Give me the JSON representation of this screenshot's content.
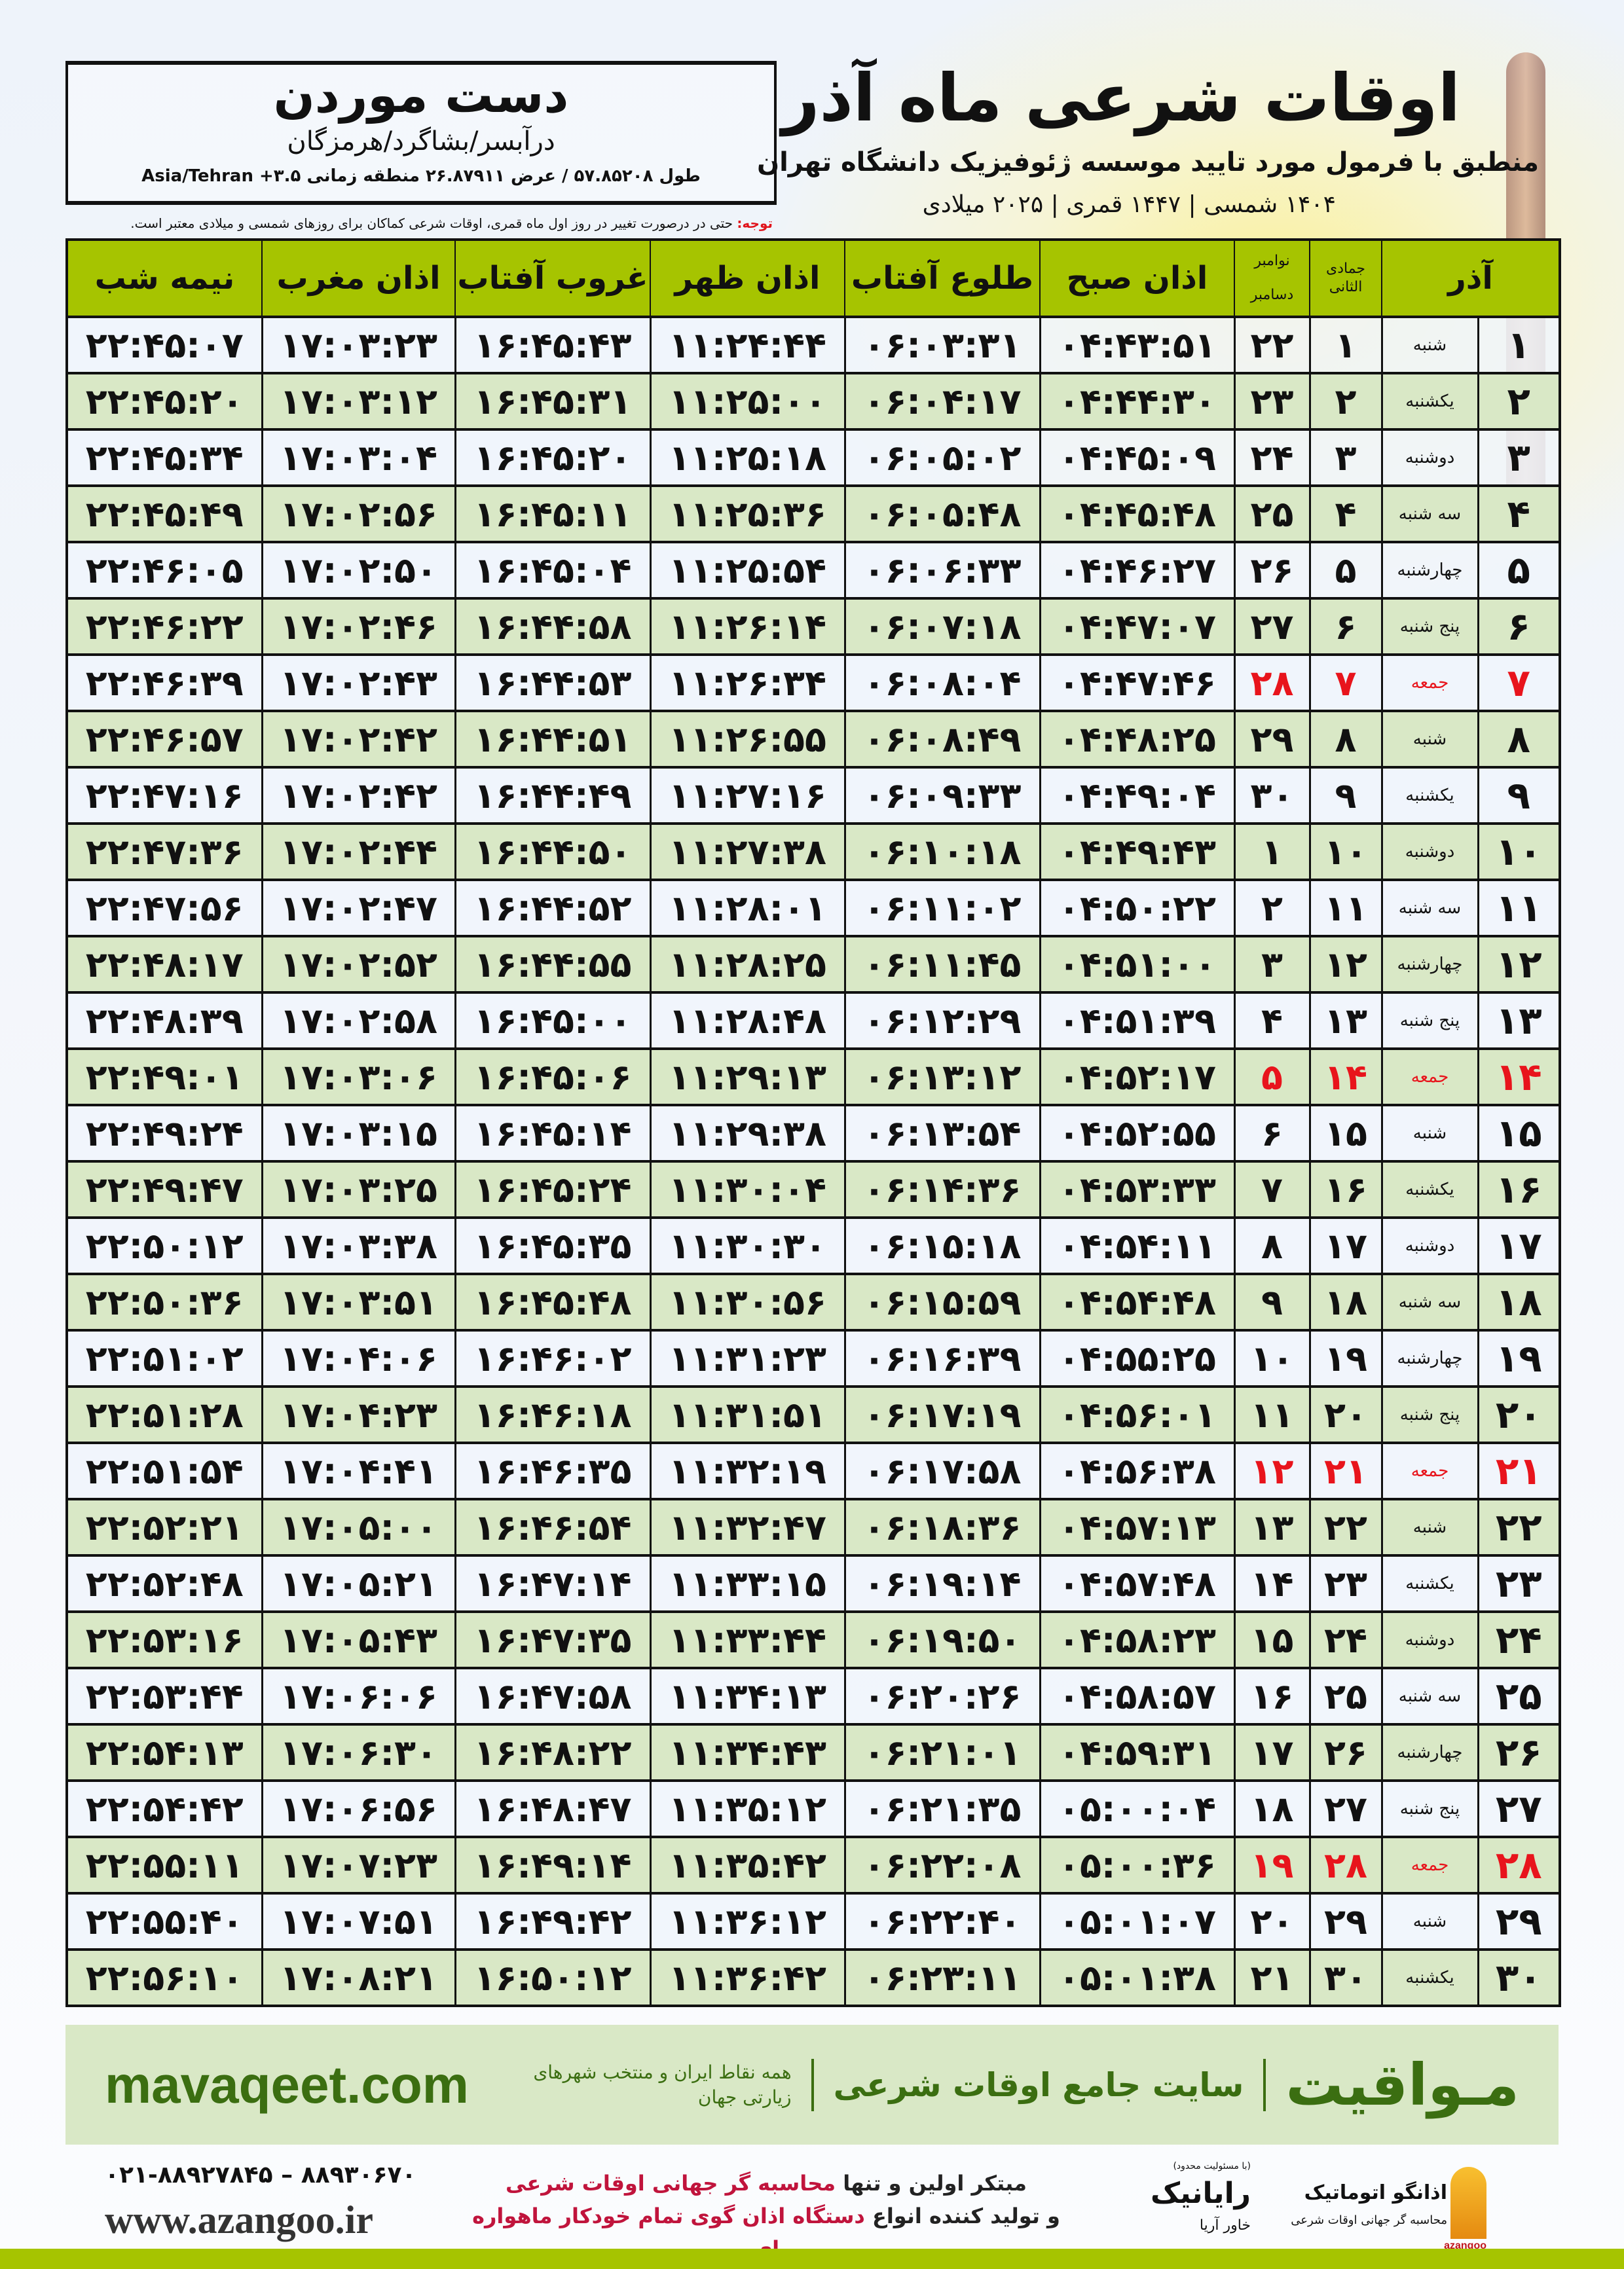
{
  "header": {
    "title": "اوقات شرعی ماه آذر",
    "subtitle": "منطبق با فرمول مورد تایید موسسه ژئوفیزیک دانشگاه تهران",
    "years": "۱۴۰۴ شمسی | ۱۴۴۷ قمری | ۲۰۲۵ میلادی"
  },
  "location": {
    "city": "دست موردن",
    "region": "درآبسر/بشاگرد/هرمزگان",
    "coords": "طول ۵۷.۸۵۲۰۸ / عرض ۲۶.۸۷۹۱۱ منطقه زمانی ۳.۵+ Asia/Tehran"
  },
  "note": {
    "label": "توجه:",
    "text": " حتی در درصورت تغییر در روز اول ماه قمری، اوقات شرعی کماکان برای روزهای شمسی و میلادی معتبر است."
  },
  "colors": {
    "header_green": "#a6c400",
    "row_green": "#d9e8c6",
    "friday_red": "#e8141c",
    "brand_green": "#3b6e11"
  },
  "table": {
    "headers": {
      "month": "آذر",
      "hijri": "جمادی الثانی",
      "greg1": "نوامبر",
      "greg2": "دسامبر",
      "fajr": "اذان صبح",
      "sunrise": "طلوع آفتاب",
      "dhuhr": "اذان ظهر",
      "sunset": "غروب آفتاب",
      "maghrib": "اذان مغرب",
      "midnight": "نیمه شب"
    },
    "rows": [
      {
        "c": [
          "۱",
          "شنبه",
          "۱",
          "۲۲",
          "۰۴:۴۳:۵۱",
          "۰۶:۰۳:۳۱",
          "۱۱:۲۴:۴۴",
          "۱۶:۴۵:۴۳",
          "۱۷:۰۳:۲۳",
          "۲۲:۴۵:۰۷"
        ],
        "friday": false
      },
      {
        "c": [
          "۲",
          "یکشنبه",
          "۲",
          "۲۳",
          "۰۴:۴۴:۳۰",
          "۰۶:۰۴:۱۷",
          "۱۱:۲۵:۰۰",
          "۱۶:۴۵:۳۱",
          "۱۷:۰۳:۱۲",
          "۲۲:۴۵:۲۰"
        ],
        "friday": false
      },
      {
        "c": [
          "۳",
          "دوشنبه",
          "۳",
          "۲۴",
          "۰۴:۴۵:۰۹",
          "۰۶:۰۵:۰۲",
          "۱۱:۲۵:۱۸",
          "۱۶:۴۵:۲۰",
          "۱۷:۰۳:۰۴",
          "۲۲:۴۵:۳۴"
        ],
        "friday": false
      },
      {
        "c": [
          "۴",
          "سه شنبه",
          "۴",
          "۲۵",
          "۰۴:۴۵:۴۸",
          "۰۶:۰۵:۴۸",
          "۱۱:۲۵:۳۶",
          "۱۶:۴۵:۱۱",
          "۱۷:۰۲:۵۶",
          "۲۲:۴۵:۴۹"
        ],
        "friday": false
      },
      {
        "c": [
          "۵",
          "چهارشنبه",
          "۵",
          "۲۶",
          "۰۴:۴۶:۲۷",
          "۰۶:۰۶:۳۳",
          "۱۱:۲۵:۵۴",
          "۱۶:۴۵:۰۴",
          "۱۷:۰۲:۵۰",
          "۲۲:۴۶:۰۵"
        ],
        "friday": false
      },
      {
        "c": [
          "۶",
          "پنج شنبه",
          "۶",
          "۲۷",
          "۰۴:۴۷:۰۷",
          "۰۶:۰۷:۱۸",
          "۱۱:۲۶:۱۴",
          "۱۶:۴۴:۵۸",
          "۱۷:۰۲:۴۶",
          "۲۲:۴۶:۲۲"
        ],
        "friday": false
      },
      {
        "c": [
          "۷",
          "جمعه",
          "۷",
          "۲۸",
          "۰۴:۴۷:۴۶",
          "۰۶:۰۸:۰۴",
          "۱۱:۲۶:۳۴",
          "۱۶:۴۴:۵۳",
          "۱۷:۰۲:۴۳",
          "۲۲:۴۶:۳۹"
        ],
        "friday": true
      },
      {
        "c": [
          "۸",
          "شنبه",
          "۸",
          "۲۹",
          "۰۴:۴۸:۲۵",
          "۰۶:۰۸:۴۹",
          "۱۱:۲۶:۵۵",
          "۱۶:۴۴:۵۱",
          "۱۷:۰۲:۴۲",
          "۲۲:۴۶:۵۷"
        ],
        "friday": false
      },
      {
        "c": [
          "۹",
          "یکشنبه",
          "۹",
          "۳۰",
          "۰۴:۴۹:۰۴",
          "۰۶:۰۹:۳۳",
          "۱۱:۲۷:۱۶",
          "۱۶:۴۴:۴۹",
          "۱۷:۰۲:۴۲",
          "۲۲:۴۷:۱۶"
        ],
        "friday": false
      },
      {
        "c": [
          "۱۰",
          "دوشنبه",
          "۱۰",
          "۱",
          "۰۴:۴۹:۴۳",
          "۰۶:۱۰:۱۸",
          "۱۱:۲۷:۳۸",
          "۱۶:۴۴:۵۰",
          "۱۷:۰۲:۴۴",
          "۲۲:۴۷:۳۶"
        ],
        "friday": false
      },
      {
        "c": [
          "۱۱",
          "سه شنبه",
          "۱۱",
          "۲",
          "۰۴:۵۰:۲۲",
          "۰۶:۱۱:۰۲",
          "۱۱:۲۸:۰۱",
          "۱۶:۴۴:۵۲",
          "۱۷:۰۲:۴۷",
          "۲۲:۴۷:۵۶"
        ],
        "friday": false
      },
      {
        "c": [
          "۱۲",
          "چهارشنبه",
          "۱۲",
          "۳",
          "۰۴:۵۱:۰۰",
          "۰۶:۱۱:۴۵",
          "۱۱:۲۸:۲۵",
          "۱۶:۴۴:۵۵",
          "۱۷:۰۲:۵۲",
          "۲۲:۴۸:۱۷"
        ],
        "friday": false
      },
      {
        "c": [
          "۱۳",
          "پنج شنبه",
          "۱۳",
          "۴",
          "۰۴:۵۱:۳۹",
          "۰۶:۱۲:۲۹",
          "۱۱:۲۸:۴۸",
          "۱۶:۴۵:۰۰",
          "۱۷:۰۲:۵۸",
          "۲۲:۴۸:۳۹"
        ],
        "friday": false
      },
      {
        "c": [
          "۱۴",
          "جمعه",
          "۱۴",
          "۵",
          "۰۴:۵۲:۱۷",
          "۰۶:۱۳:۱۲",
          "۱۱:۲۹:۱۳",
          "۱۶:۴۵:۰۶",
          "۱۷:۰۳:۰۶",
          "۲۲:۴۹:۰۱"
        ],
        "friday": true
      },
      {
        "c": [
          "۱۵",
          "شنبه",
          "۱۵",
          "۶",
          "۰۴:۵۲:۵۵",
          "۰۶:۱۳:۵۴",
          "۱۱:۲۹:۳۸",
          "۱۶:۴۵:۱۴",
          "۱۷:۰۳:۱۵",
          "۲۲:۴۹:۲۴"
        ],
        "friday": false
      },
      {
        "c": [
          "۱۶",
          "یکشنبه",
          "۱۶",
          "۷",
          "۰۴:۵۳:۳۳",
          "۰۶:۱۴:۳۶",
          "۱۱:۳۰:۰۴",
          "۱۶:۴۵:۲۴",
          "۱۷:۰۳:۲۵",
          "۲۲:۴۹:۴۷"
        ],
        "friday": false
      },
      {
        "c": [
          "۱۷",
          "دوشنبه",
          "۱۷",
          "۸",
          "۰۴:۵۴:۱۱",
          "۰۶:۱۵:۱۸",
          "۱۱:۳۰:۳۰",
          "۱۶:۴۵:۳۵",
          "۱۷:۰۳:۳۸",
          "۲۲:۵۰:۱۲"
        ],
        "friday": false
      },
      {
        "c": [
          "۱۸",
          "سه شنبه",
          "۱۸",
          "۹",
          "۰۴:۵۴:۴۸",
          "۰۶:۱۵:۵۹",
          "۱۱:۳۰:۵۶",
          "۱۶:۴۵:۴۸",
          "۱۷:۰۳:۵۱",
          "۲۲:۵۰:۳۶"
        ],
        "friday": false
      },
      {
        "c": [
          "۱۹",
          "چهارشنبه",
          "۱۹",
          "۱۰",
          "۰۴:۵۵:۲۵",
          "۰۶:۱۶:۳۹",
          "۱۱:۳۱:۲۳",
          "۱۶:۴۶:۰۲",
          "۱۷:۰۴:۰۶",
          "۲۲:۵۱:۰۲"
        ],
        "friday": false
      },
      {
        "c": [
          "۲۰",
          "پنج شنبه",
          "۲۰",
          "۱۱",
          "۰۴:۵۶:۰۱",
          "۰۶:۱۷:۱۹",
          "۱۱:۳۱:۵۱",
          "۱۶:۴۶:۱۸",
          "۱۷:۰۴:۲۳",
          "۲۲:۵۱:۲۸"
        ],
        "friday": false
      },
      {
        "c": [
          "۲۱",
          "جمعه",
          "۲۱",
          "۱۲",
          "۰۴:۵۶:۳۸",
          "۰۶:۱۷:۵۸",
          "۱۱:۳۲:۱۹",
          "۱۶:۴۶:۳۵",
          "۱۷:۰۴:۴۱",
          "۲۲:۵۱:۵۴"
        ],
        "friday": true
      },
      {
        "c": [
          "۲۲",
          "شنبه",
          "۲۲",
          "۱۳",
          "۰۴:۵۷:۱۳",
          "۰۶:۱۸:۳۶",
          "۱۱:۳۲:۴۷",
          "۱۶:۴۶:۵۴",
          "۱۷:۰۵:۰۰",
          "۲۲:۵۲:۲۱"
        ],
        "friday": false
      },
      {
        "c": [
          "۲۳",
          "یکشنبه",
          "۲۳",
          "۱۴",
          "۰۴:۵۷:۴۸",
          "۰۶:۱۹:۱۴",
          "۱۱:۳۳:۱۵",
          "۱۶:۴۷:۱۴",
          "۱۷:۰۵:۲۱",
          "۲۲:۵۲:۴۸"
        ],
        "friday": false
      },
      {
        "c": [
          "۲۴",
          "دوشنبه",
          "۲۴",
          "۱۵",
          "۰۴:۵۸:۲۳",
          "۰۶:۱۹:۵۰",
          "۱۱:۳۳:۴۴",
          "۱۶:۴۷:۳۵",
          "۱۷:۰۵:۴۳",
          "۲۲:۵۳:۱۶"
        ],
        "friday": false
      },
      {
        "c": [
          "۲۵",
          "سه شنبه",
          "۲۵",
          "۱۶",
          "۰۴:۵۸:۵۷",
          "۰۶:۲۰:۲۶",
          "۱۱:۳۴:۱۳",
          "۱۶:۴۷:۵۸",
          "۱۷:۰۶:۰۶",
          "۲۲:۵۳:۴۴"
        ],
        "friday": false
      },
      {
        "c": [
          "۲۶",
          "چهارشنبه",
          "۲۶",
          "۱۷",
          "۰۴:۵۹:۳۱",
          "۰۶:۲۱:۰۱",
          "۱۱:۳۴:۴۳",
          "۱۶:۴۸:۲۲",
          "۱۷:۰۶:۳۰",
          "۲۲:۵۴:۱۳"
        ],
        "friday": false
      },
      {
        "c": [
          "۲۷",
          "پنج شنبه",
          "۲۷",
          "۱۸",
          "۰۵:۰۰:۰۴",
          "۰۶:۲۱:۳۵",
          "۱۱:۳۵:۱۲",
          "۱۶:۴۸:۴۷",
          "۱۷:۰۶:۵۶",
          "۲۲:۵۴:۴۲"
        ],
        "friday": false
      },
      {
        "c": [
          "۲۸",
          "جمعه",
          "۲۸",
          "۱۹",
          "۰۵:۰۰:۳۶",
          "۰۶:۲۲:۰۸",
          "۱۱:۳۵:۴۲",
          "۱۶:۴۹:۱۴",
          "۱۷:۰۷:۲۳",
          "۲۲:۵۵:۱۱"
        ],
        "friday": true
      },
      {
        "c": [
          "۲۹",
          "شنبه",
          "۲۹",
          "۲۰",
          "۰۵:۰۱:۰۷",
          "۰۶:۲۲:۴۰",
          "۱۱:۳۶:۱۲",
          "۱۶:۴۹:۴۲",
          "۱۷:۰۷:۵۱",
          "۲۲:۵۵:۴۰"
        ],
        "friday": false
      },
      {
        "c": [
          "۳۰",
          "یکشنبه",
          "۳۰",
          "۲۱",
          "۰۵:۰۱:۳۸",
          "۰۶:۲۳:۱۱",
          "۱۱:۳۶:۴۲",
          "۱۶:۵۰:۱۲",
          "۱۷:۰۸:۲۱",
          "۲۲:۵۶:۱۰"
        ],
        "friday": false
      }
    ]
  },
  "footer": {
    "brand": "مـواقیت",
    "tagline": "سایت جامع اوقات شرعی",
    "tagline_sub": "همه نقاط ایران و منتخب شهرهای زیارتی جهان",
    "url": "mavaqeet.com",
    "azangoo_name": "اذانگو اتوماتیک",
    "azangoo_caption": "محاسبه گر جهانی اوقات شرعی",
    "azangoo_latin": "azangoo",
    "rayanik_name": "رایانیک",
    "rayanik_sub": "خاور آریا",
    "rayanik_top": "(با مسئولیت محدود)",
    "promo_line1_a": "مبتکر اولین و تنها ",
    "promo_line1_b": "محاسبه گر جهانی اوقات شرعی",
    "promo_line2_a": "و تولید کننده انواع ",
    "promo_line2_b": "دستگاه اذان گوی تمام خودکار ماهواره ای",
    "phones": "۰۲۱-۸۸۹۲۷۸۴۵ – ۸۸۹۳۰۶۷۰",
    "website": "www.azangoo.ir"
  }
}
